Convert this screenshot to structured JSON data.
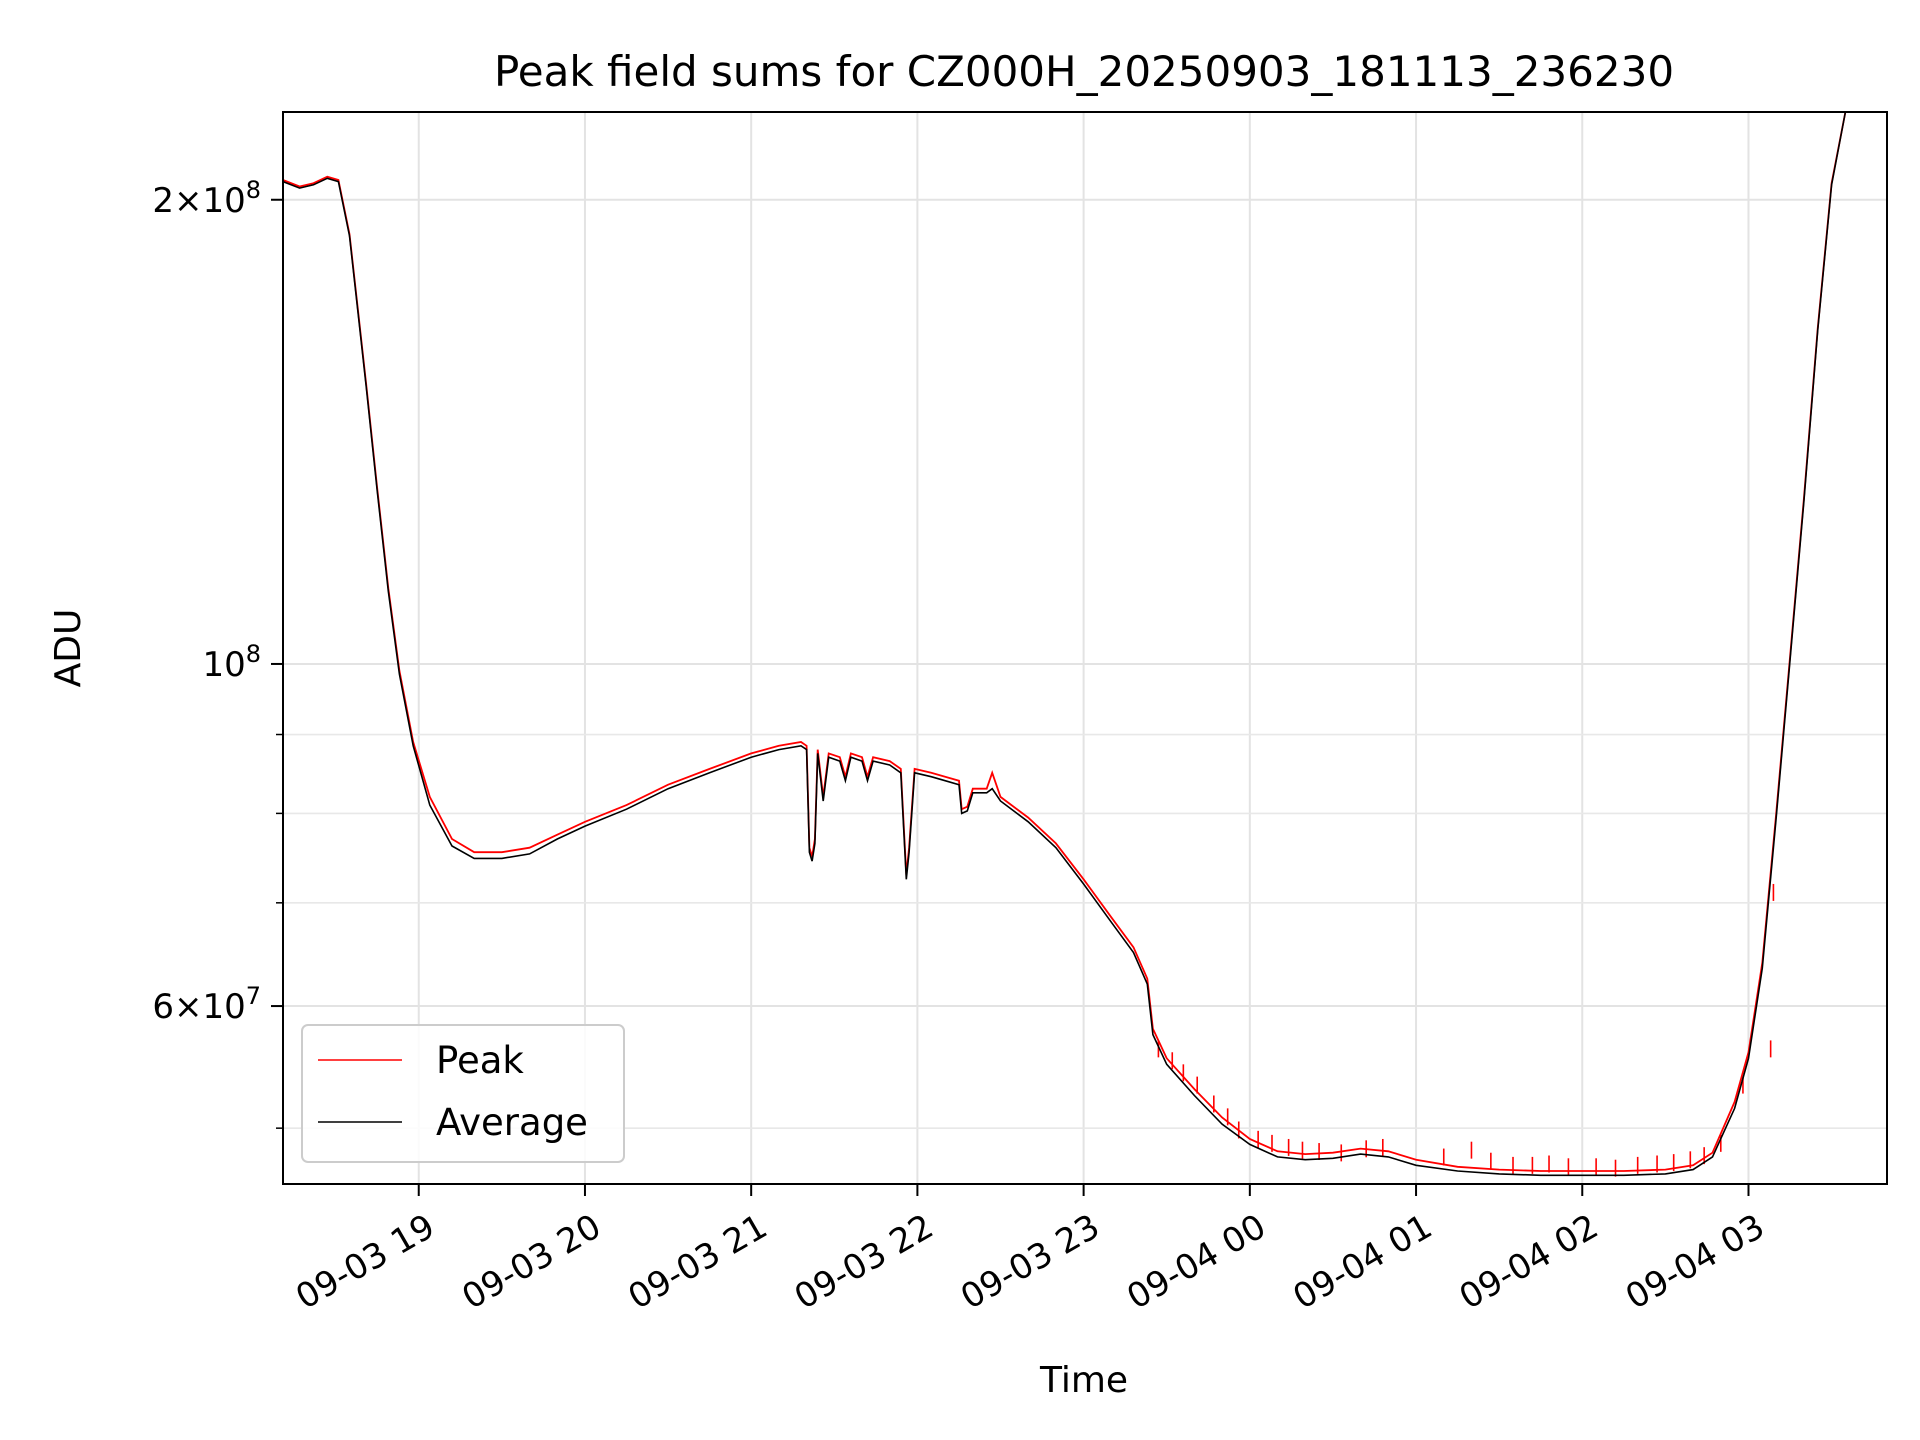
{
  "chart_data": {
    "type": "line",
    "title": "Peak field sums for CZ000H_20250903_181113_236230",
    "xlabel": "Time",
    "ylabel": "ADU",
    "y_scale": "log",
    "ylim": [
      46000000,
      228000000
    ],
    "xlim": [
      "2025-09-03 18:11",
      "2025-09-04 03:50"
    ],
    "grid": true,
    "legend_position": "lower-left",
    "x_ticks": [
      {
        "t": "2025-09-03 19:00",
        "label": "09-03 19"
      },
      {
        "t": "2025-09-03 20:00",
        "label": "09-03 20"
      },
      {
        "t": "2025-09-03 21:00",
        "label": "09-03 21"
      },
      {
        "t": "2025-09-03 22:00",
        "label": "09-03 22"
      },
      {
        "t": "2025-09-03 23:00",
        "label": "09-03 23"
      },
      {
        "t": "2025-09-04 00:00",
        "label": "09-04 00"
      },
      {
        "t": "2025-09-04 01:00",
        "label": "09-04 01"
      },
      {
        "t": "2025-09-04 02:00",
        "label": "09-04 02"
      },
      {
        "t": "2025-09-04 03:00",
        "label": "09-04 03"
      }
    ],
    "y_ticks_major": [
      {
        "v": 100000000,
        "base": "10",
        "exp": "8"
      },
      {
        "v": 200000000,
        "mant": "2",
        "base": "10",
        "exp": "8"
      },
      {
        "v": 60000000,
        "mant": "6",
        "base": "10",
        "exp": "7"
      }
    ],
    "y_ticks_minor": [
      50000000,
      70000000,
      80000000,
      90000000
    ],
    "series": [
      {
        "name": "Peak",
        "color": "#ff0000",
        "points": [
          [
            "2025-09-03 18:11",
            206000000
          ],
          [
            "2025-09-03 18:17",
            204000000
          ],
          [
            "2025-09-03 18:22",
            205000000
          ],
          [
            "2025-09-03 18:27",
            207000000
          ],
          [
            "2025-09-03 18:31",
            206000000
          ],
          [
            "2025-09-03 18:35",
            190000000
          ],
          [
            "2025-09-03 18:38",
            170000000
          ],
          [
            "2025-09-03 18:41",
            152000000
          ],
          [
            "2025-09-03 18:45",
            130000000
          ],
          [
            "2025-09-03 18:49",
            112000000
          ],
          [
            "2025-09-03 18:53",
            99000000
          ],
          [
            "2025-09-03 18:58",
            89000000
          ],
          [
            "2025-09-03 19:04",
            82000000
          ],
          [
            "2025-09-03 19:12",
            77000000
          ],
          [
            "2025-09-03 19:20",
            75500000
          ],
          [
            "2025-09-03 19:30",
            75500000
          ],
          [
            "2025-09-03 19:40",
            76000000
          ],
          [
            "2025-09-03 19:50",
            77500000
          ],
          [
            "2025-09-03 20:00",
            79000000
          ],
          [
            "2025-09-03 20:15",
            81000000
          ],
          [
            "2025-09-03 20:30",
            83500000
          ],
          [
            "2025-09-03 20:45",
            85500000
          ],
          [
            "2025-09-03 21:00",
            87500000
          ],
          [
            "2025-09-03 21:10",
            88500000
          ],
          [
            "2025-09-03 21:18",
            89000000
          ],
          [
            "2025-09-03 21:20",
            88500000
          ],
          [
            "2025-09-03 21:21",
            76000000
          ],
          [
            "2025-09-03 21:22",
            75000000
          ],
          [
            "2025-09-03 21:23",
            77000000
          ],
          [
            "2025-09-03 21:24",
            88000000
          ],
          [
            "2025-09-03 21:26",
            82000000
          ],
          [
            "2025-09-03 21:28",
            87500000
          ],
          [
            "2025-09-03 21:32",
            87000000
          ],
          [
            "2025-09-03 21:34",
            84500000
          ],
          [
            "2025-09-03 21:36",
            87500000
          ],
          [
            "2025-09-03 21:40",
            87000000
          ],
          [
            "2025-09-03 21:42",
            84500000
          ],
          [
            "2025-09-03 21:44",
            87000000
          ],
          [
            "2025-09-03 21:50",
            86500000
          ],
          [
            "2025-09-03 21:54",
            85500000
          ],
          [
            "2025-09-03 21:56",
            73000000
          ],
          [
            "2025-09-03 21:57",
            76000000
          ],
          [
            "2025-09-03 21:59",
            85500000
          ],
          [
            "2025-09-03 22:05",
            85000000
          ],
          [
            "2025-09-03 22:10",
            84500000
          ],
          [
            "2025-09-03 22:15",
            84000000
          ],
          [
            "2025-09-03 22:16",
            80500000
          ],
          [
            "2025-09-03 22:18",
            80800000
          ],
          [
            "2025-09-03 22:20",
            83000000
          ],
          [
            "2025-09-03 22:25",
            83000000
          ],
          [
            "2025-09-03 22:27",
            85000000
          ],
          [
            "2025-09-03 22:30",
            82000000
          ],
          [
            "2025-09-03 22:40",
            79500000
          ],
          [
            "2025-09-03 22:50",
            76500000
          ],
          [
            "2025-09-03 23:00",
            72500000
          ],
          [
            "2025-09-03 23:10",
            68500000
          ],
          [
            "2025-09-03 23:18",
            65500000
          ],
          [
            "2025-09-03 23:23",
            62500000
          ],
          [
            "2025-09-03 23:25",
            58000000
          ],
          [
            "2025-09-03 23:30",
            55500000
          ],
          [
            "2025-09-03 23:40",
            53000000
          ],
          [
            "2025-09-03 23:50",
            50800000
          ],
          [
            "2025-09-04 00:00",
            49200000
          ],
          [
            "2025-09-04 00:10",
            48300000
          ],
          [
            "2025-09-04 00:20",
            48100000
          ],
          [
            "2025-09-04 00:30",
            48200000
          ],
          [
            "2025-09-04 00:40",
            48500000
          ],
          [
            "2025-09-04 00:50",
            48300000
          ],
          [
            "2025-09-04 01:00",
            47700000
          ],
          [
            "2025-09-04 01:15",
            47200000
          ],
          [
            "2025-09-04 01:30",
            47000000
          ],
          [
            "2025-09-04 01:45",
            46900000
          ],
          [
            "2025-09-04 02:00",
            46900000
          ],
          [
            "2025-09-04 02:15",
            46900000
          ],
          [
            "2025-09-04 02:30",
            47000000
          ],
          [
            "2025-09-04 02:40",
            47300000
          ],
          [
            "2025-09-04 02:47",
            48200000
          ],
          [
            "2025-09-04 02:55",
            52000000
          ],
          [
            "2025-09-04 03:00",
            56000000
          ],
          [
            "2025-09-04 03:05",
            64000000
          ],
          [
            "2025-09-04 03:10",
            80000000
          ],
          [
            "2025-09-04 03:15",
            101000000
          ],
          [
            "2025-09-04 03:20",
            128000000
          ],
          [
            "2025-09-04 03:25",
            165000000
          ],
          [
            "2025-09-04 03:30",
            205000000
          ],
          [
            "2025-09-04 03:35",
            228000000
          ],
          [
            "2025-09-04 03:50",
            228000000
          ]
        ]
      },
      {
        "name": "Average",
        "color": "#000000",
        "points": [
          [
            "2025-09-03 18:11",
            205500000
          ],
          [
            "2025-09-03 18:17",
            203500000
          ],
          [
            "2025-09-03 18:22",
            204500000
          ],
          [
            "2025-09-03 18:27",
            206500000
          ],
          [
            "2025-09-03 18:31",
            205500000
          ],
          [
            "2025-09-03 18:35",
            189500000
          ],
          [
            "2025-09-03 18:38",
            169500000
          ],
          [
            "2025-09-03 18:41",
            151500000
          ],
          [
            "2025-09-03 18:45",
            129500000
          ],
          [
            "2025-09-03 18:49",
            111500000
          ],
          [
            "2025-09-03 18:53",
            98500000
          ],
          [
            "2025-09-03 18:58",
            88500000
          ],
          [
            "2025-09-03 19:04",
            81000000
          ],
          [
            "2025-09-03 19:12",
            76200000
          ],
          [
            "2025-09-03 19:20",
            74800000
          ],
          [
            "2025-09-03 19:30",
            74800000
          ],
          [
            "2025-09-03 19:40",
            75300000
          ],
          [
            "2025-09-03 19:50",
            77000000
          ],
          [
            "2025-09-03 20:00",
            78500000
          ],
          [
            "2025-09-03 20:15",
            80500000
          ],
          [
            "2025-09-03 20:30",
            83000000
          ],
          [
            "2025-09-03 20:45",
            85000000
          ],
          [
            "2025-09-03 21:00",
            87000000
          ],
          [
            "2025-09-03 21:10",
            88000000
          ],
          [
            "2025-09-03 21:18",
            88500000
          ],
          [
            "2025-09-03 21:20",
            88000000
          ],
          [
            "2025-09-03 21:21",
            75500000
          ],
          [
            "2025-09-03 21:22",
            74500000
          ],
          [
            "2025-09-03 21:23",
            76500000
          ],
          [
            "2025-09-03 21:24",
            87500000
          ],
          [
            "2025-09-03 21:26",
            81500000
          ],
          [
            "2025-09-03 21:28",
            87000000
          ],
          [
            "2025-09-03 21:32",
            86500000
          ],
          [
            "2025-09-03 21:34",
            84000000
          ],
          [
            "2025-09-03 21:36",
            87000000
          ],
          [
            "2025-09-03 21:40",
            86500000
          ],
          [
            "2025-09-03 21:42",
            84000000
          ],
          [
            "2025-09-03 21:44",
            86500000
          ],
          [
            "2025-09-03 21:50",
            86000000
          ],
          [
            "2025-09-03 21:54",
            85000000
          ],
          [
            "2025-09-03 21:56",
            72500000
          ],
          [
            "2025-09-03 21:57",
            75500000
          ],
          [
            "2025-09-03 21:59",
            85000000
          ],
          [
            "2025-09-03 22:05",
            84500000
          ],
          [
            "2025-09-03 22:10",
            84000000
          ],
          [
            "2025-09-03 22:15",
            83500000
          ],
          [
            "2025-09-03 22:16",
            80000000
          ],
          [
            "2025-09-03 22:18",
            80300000
          ],
          [
            "2025-09-03 22:20",
            82500000
          ],
          [
            "2025-09-03 22:25",
            82500000
          ],
          [
            "2025-09-03 22:27",
            83000000
          ],
          [
            "2025-09-03 22:30",
            81500000
          ],
          [
            "2025-09-03 22:40",
            79000000
          ],
          [
            "2025-09-03 22:50",
            76000000
          ],
          [
            "2025-09-03 23:00",
            72000000
          ],
          [
            "2025-09-03 23:10",
            68000000
          ],
          [
            "2025-09-03 23:18",
            65000000
          ],
          [
            "2025-09-03 23:23",
            62000000
          ],
          [
            "2025-09-03 23:25",
            57500000
          ],
          [
            "2025-09-03 23:30",
            55000000
          ],
          [
            "2025-09-03 23:40",
            52500000
          ],
          [
            "2025-09-03 23:50",
            50300000
          ],
          [
            "2025-09-04 00:00",
            48800000
          ],
          [
            "2025-09-04 00:10",
            47900000
          ],
          [
            "2025-09-04 00:20",
            47700000
          ],
          [
            "2025-09-04 00:30",
            47800000
          ],
          [
            "2025-09-04 00:40",
            48100000
          ],
          [
            "2025-09-04 00:50",
            47900000
          ],
          [
            "2025-09-04 01:00",
            47300000
          ],
          [
            "2025-09-04 01:15",
            46900000
          ],
          [
            "2025-09-04 01:30",
            46700000
          ],
          [
            "2025-09-04 01:45",
            46600000
          ],
          [
            "2025-09-04 02:00",
            46600000
          ],
          [
            "2025-09-04 02:15",
            46600000
          ],
          [
            "2025-09-04 02:30",
            46700000
          ],
          [
            "2025-09-04 02:40",
            47000000
          ],
          [
            "2025-09-04 02:47",
            47900000
          ],
          [
            "2025-09-04 02:55",
            51500000
          ],
          [
            "2025-09-04 03:00",
            55500000
          ],
          [
            "2025-09-04 03:05",
            63500000
          ],
          [
            "2025-09-04 03:10",
            79500000
          ],
          [
            "2025-09-04 03:15",
            100500000
          ],
          [
            "2025-09-04 03:20",
            127500000
          ],
          [
            "2025-09-04 03:25",
            164500000
          ],
          [
            "2025-09-04 03:30",
            204500000
          ],
          [
            "2025-09-04 03:35",
            228000000
          ],
          [
            "2025-09-04 03:50",
            228000000
          ]
        ]
      }
    ],
    "peak_spikes": [
      [
        "2025-09-03 23:27",
        57000000
      ],
      [
        "2025-09-03 23:32",
        56000000
      ],
      [
        "2025-09-03 23:36",
        55000000
      ],
      [
        "2025-09-03 23:41",
        54000000
      ],
      [
        "2025-09-03 23:47",
        52500000
      ],
      [
        "2025-09-03 23:52",
        51500000
      ],
      [
        "2025-09-03 23:56",
        50500000
      ],
      [
        "2025-09-04 00:03",
        49800000
      ],
      [
        "2025-09-04 00:08",
        49500000
      ],
      [
        "2025-09-04 00:14",
        49200000
      ],
      [
        "2025-09-04 00:19",
        49000000
      ],
      [
        "2025-09-04 00:25",
        48900000
      ],
      [
        "2025-09-04 00:33",
        48800000
      ],
      [
        "2025-09-04 00:42",
        49100000
      ],
      [
        "2025-09-04 00:48",
        49200000
      ],
      [
        "2025-09-04 01:10",
        48500000
      ],
      [
        "2025-09-04 01:20",
        49000000
      ],
      [
        "2025-09-04 01:27",
        48200000
      ],
      [
        "2025-09-04 01:35",
        47900000
      ],
      [
        "2025-09-04 01:42",
        47900000
      ],
      [
        "2025-09-04 01:48",
        48000000
      ],
      [
        "2025-09-04 01:55",
        47800000
      ],
      [
        "2025-09-04 02:05",
        47800000
      ],
      [
        "2025-09-04 02:12",
        47700000
      ],
      [
        "2025-09-04 02:20",
        47900000
      ],
      [
        "2025-09-04 02:27",
        48000000
      ],
      [
        "2025-09-04 02:33",
        48100000
      ],
      [
        "2025-09-04 02:39",
        48300000
      ],
      [
        "2025-09-04 02:44",
        48600000
      ],
      [
        "2025-09-04 02:50",
        49500000
      ],
      [
        "2025-09-04 02:58",
        54000000
      ],
      [
        "2025-09-04 03:08",
        57000000
      ],
      [
        "2025-09-04 03:09",
        72000000
      ]
    ]
  },
  "legend": {
    "peak_label": "Peak",
    "average_label": "Average"
  }
}
